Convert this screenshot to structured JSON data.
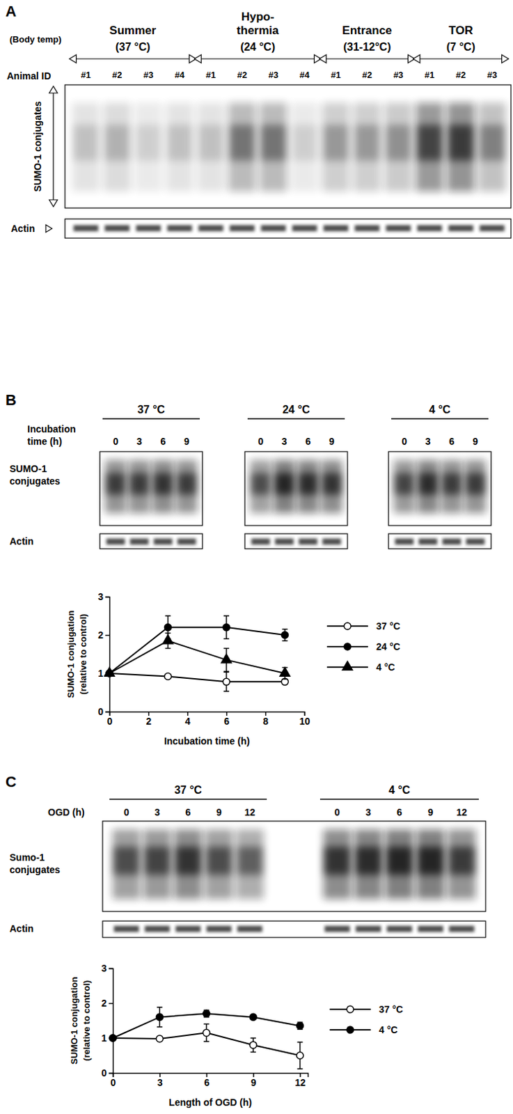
{
  "chart_data": [
    {
      "type": "line",
      "x": [
        0,
        3,
        6,
        9
      ],
      "xlim": [
        0,
        10
      ],
      "xticks": [
        0,
        2,
        4,
        6,
        8,
        10
      ],
      "ylim": [
        0,
        3
      ],
      "yticks": [
        0,
        1,
        2,
        3
      ],
      "grid": false,
      "legend": "right",
      "x_label": "Incubation time (h)",
      "y_label": "SUMO-1 conjugation (relative to control)",
      "series": [
        {
          "name": "37 °C",
          "color": "#000000",
          "marker": "open-circle",
          "values": [
            1,
            0.92,
            0.78,
            0.78
          ],
          "errors": [
            0,
            0.04,
            0.25,
            0.05
          ]
        },
        {
          "name": "24 °C",
          "color": "#000000",
          "marker": "filled-circle",
          "values": [
            1,
            2.2,
            2.2,
            2.0
          ],
          "errors": [
            0,
            0.3,
            0.3,
            0.15
          ]
        },
        {
          "name": "4 °C",
          "color": "#000000",
          "marker": "filled-triangle",
          "values": [
            1,
            1.85,
            1.35,
            1.0
          ],
          "errors": [
            0,
            0.2,
            0.3,
            0.15
          ]
        }
      ]
    },
    {
      "type": "line",
      "x": [
        0,
        3,
        6,
        9,
        12
      ],
      "xlim": [
        0,
        12.5
      ],
      "xticks": [
        0,
        3,
        6,
        9,
        12
      ],
      "ylim": [
        0,
        3
      ],
      "yticks": [
        0,
        1,
        2,
        3
      ],
      "grid": false,
      "legend": "right",
      "x_label": "Length of OGD (h)",
      "y_label": "SUMO-1 conjugation (relative to control)",
      "series": [
        {
          "name": "37 °C",
          "color": "#000000",
          "marker": "open-circle",
          "values": [
            1,
            0.98,
            1.15,
            0.8,
            0.5
          ],
          "errors": [
            0,
            0.05,
            0.25,
            0.2,
            0.38
          ]
        },
        {
          "name": "4 °C",
          "color": "#000000",
          "marker": "filled-circle",
          "values": [
            1,
            1.6,
            1.7,
            1.6,
            1.35
          ],
          "errors": [
            0,
            0.28,
            0.1,
            0.05,
            0.1
          ]
        }
      ]
    }
  ],
  "figure": {
    "panel_a": {
      "label": "A",
      "body_temp_label": "(Body temp)",
      "animal_id_label": "Animal ID",
      "blot_label": "SUMO-1 conjugates",
      "actin_label": "Actin",
      "groups": [
        {
          "name": "Summer",
          "temp": "(37 °C)",
          "animals": [
            "#1",
            "#2",
            "#3",
            "#4"
          ],
          "intensity": [
            0.2,
            0.25,
            0.15,
            0.2
          ]
        },
        {
          "name": "Hypo-thermia",
          "temp": "(24 °C)",
          "animals": [
            "#1",
            "#2",
            "#3",
            "#4"
          ],
          "intensity": [
            0.2,
            0.5,
            0.5,
            0.15
          ]
        },
        {
          "name": "Entrance",
          "temp": "(31-12°C)",
          "animals": [
            "#1",
            "#2",
            "#3"
          ],
          "intensity": [
            0.35,
            0.35,
            0.38
          ]
        },
        {
          "name": "TOR",
          "temp": "(7 °C)",
          "animals": [
            "#1",
            "#2",
            "#3"
          ],
          "intensity": [
            0.75,
            0.8,
            0.45
          ]
        }
      ]
    },
    "panel_b": {
      "label": "B",
      "time_label": "Incubation time (h)",
      "blot_label": "SUMO-1 conjugates",
      "actin_label": "Actin",
      "groups": [
        {
          "name": "37 °C",
          "lanes": [
            0,
            3,
            6,
            9
          ],
          "intensity": [
            0.8,
            0.8,
            0.85,
            0.8
          ]
        },
        {
          "name": "24 °C",
          "lanes": [
            0,
            3,
            6,
            9
          ],
          "intensity": [
            0.7,
            0.95,
            0.9,
            0.85
          ]
        },
        {
          "name": "4 °C",
          "lanes": [
            0,
            3,
            6,
            9
          ],
          "intensity": [
            0.75,
            0.9,
            0.8,
            0.8
          ]
        }
      ]
    },
    "panel_c": {
      "label": "C",
      "time_label": "OGD (h)",
      "blot_label": "Sumo-1 conjugates",
      "actin_label": "Actin",
      "groups": [
        {
          "name": "37 °C",
          "lanes": [
            0,
            3,
            6,
            9,
            12
          ],
          "intensity": [
            0.7,
            0.75,
            0.85,
            0.7,
            0.6
          ]
        },
        {
          "name": "4 °C",
          "lanes": [
            0,
            3,
            6,
            9,
            12
          ],
          "intensity": [
            0.85,
            0.9,
            0.95,
            0.95,
            0.8
          ]
        }
      ]
    }
  }
}
